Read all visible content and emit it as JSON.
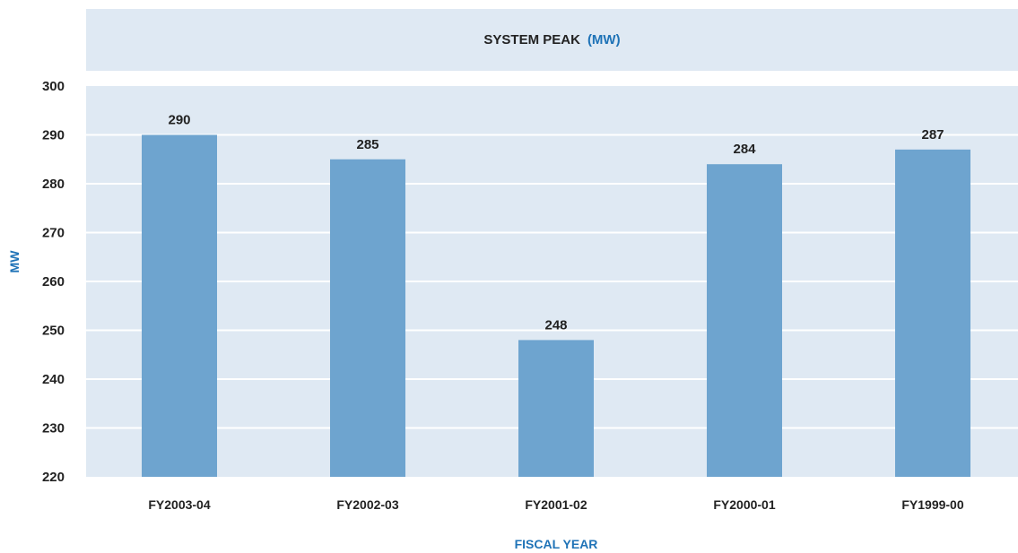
{
  "chart_data": {
    "type": "bar",
    "title": "SYSTEM PEAK",
    "title_unit": "(MW)",
    "xlabel": "FISCAL YEAR",
    "ylabel": "MW",
    "categories": [
      "FY2003-04",
      "FY2002-03",
      "FY2001-02",
      "FY2000-01",
      "FY1999-00"
    ],
    "values": [
      290,
      285,
      248,
      284,
      287
    ],
    "data_labels": [
      "290",
      "285",
      "248",
      "284",
      "287"
    ],
    "ylim": [
      220,
      300
    ],
    "yticks": [
      "220",
      "230",
      "240",
      "250",
      "260",
      "270",
      "280",
      "290",
      "300"
    ],
    "grid": true,
    "legend": "none"
  },
  "colors": {
    "bar": "#6ea4cf",
    "plot_background": "#dfe9f3",
    "gridline": "#ffffff",
    "accent_text": "#1f73b7",
    "text": "#222222"
  }
}
